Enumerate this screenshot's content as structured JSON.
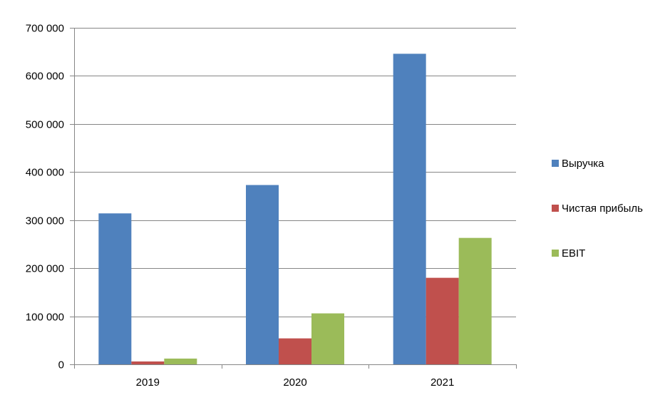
{
  "chart_data": {
    "type": "bar",
    "title": "",
    "xlabel": "",
    "ylabel": "",
    "categories": [
      "2019",
      "2020",
      "2021"
    ],
    "series": [
      {
        "name": "Выручка",
        "values": [
          314000,
          373000,
          646000
        ],
        "color": "#4F81BD"
      },
      {
        "name": "Чистая прибыль",
        "values": [
          6000,
          54000,
          180000
        ],
        "color": "#C0504D"
      },
      {
        "name": "EBIT",
        "values": [
          12000,
          106000,
          263000
        ],
        "color": "#9BBB59"
      }
    ],
    "ylim": [
      0,
      700000
    ],
    "yticks": [
      0,
      100000,
      200000,
      300000,
      400000,
      500000,
      600000,
      700000
    ],
    "ytick_labels": [
      "0",
      "100 000",
      "200 000",
      "300 000",
      "400 000",
      "500 000",
      "600 000",
      "700 000"
    ],
    "grid": true,
    "legend_position": "right"
  }
}
